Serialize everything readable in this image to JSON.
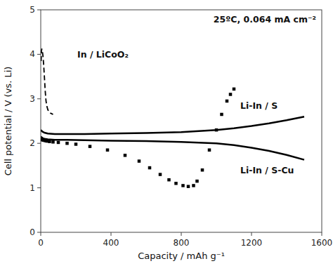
{
  "chart_data": {
    "type": "line",
    "title": "25ºC, 0.064 mA cm⁻²",
    "xlabel": "Capacity / mAh g⁻¹",
    "ylabel": "Cell potential / V (vs. Li)",
    "xlim": [
      0,
      1600
    ],
    "ylim": [
      0,
      5
    ],
    "xticks": [
      0,
      400,
      800,
      1200,
      1600
    ],
    "yticks": [
      0,
      1,
      2,
      3,
      4,
      5
    ],
    "annotations": [
      "In / LiCoO₂",
      "Li-In / S",
      "Li-In / S-Cu"
    ],
    "series": [
      {
        "color": "#000000",
        "line_style": "dashed",
        "x": [
          2,
          4,
          6,
          8,
          10,
          13,
          16,
          20,
          25,
          30,
          35,
          40,
          45,
          50,
          55,
          60,
          65,
          70
        ],
        "values": [
          3.85,
          4.08,
          4.12,
          4.1,
          4.05,
          3.95,
          3.8,
          3.55,
          3.2,
          2.95,
          2.83,
          2.76,
          2.72,
          2.7,
          2.68,
          2.67,
          2.66,
          2.65
        ]
      },
      {
        "color": "#000000",
        "line_style": "solid",
        "x": [
          0,
          10,
          20,
          40,
          80,
          150,
          250,
          400,
          600,
          800,
          1000,
          1100,
          1200,
          1300,
          1400,
          1500
        ],
        "values": [
          2.3,
          2.26,
          2.24,
          2.22,
          2.21,
          2.21,
          2.21,
          2.22,
          2.23,
          2.25,
          2.3,
          2.34,
          2.39,
          2.45,
          2.52,
          2.6
        ]
      },
      {
        "color": "#000000",
        "line_style": "solid",
        "x": [
          0,
          10,
          20,
          40,
          80,
          150,
          250,
          400,
          600,
          800,
          1000,
          1100,
          1200,
          1300,
          1400,
          1500
        ],
        "values": [
          2.15,
          2.12,
          2.1,
          2.09,
          2.08,
          2.08,
          2.07,
          2.06,
          2.05,
          2.03,
          2.0,
          1.96,
          1.9,
          1.83,
          1.74,
          1.63
        ]
      },
      {
        "color": "#000000",
        "line_style": "none",
        "marker": "square",
        "x": [
          5,
          15,
          25,
          35,
          50,
          70,
          100,
          150,
          200,
          280,
          380,
          480,
          560,
          620,
          680,
          730,
          770,
          810,
          840,
          870,
          890,
          920,
          960,
          1000,
          1030,
          1060,
          1080,
          1100
        ],
        "values": [
          2.08,
          2.07,
          2.06,
          2.05,
          2.04,
          2.03,
          2.02,
          2.0,
          1.98,
          1.93,
          1.85,
          1.73,
          1.6,
          1.45,
          1.3,
          1.18,
          1.1,
          1.05,
          1.03,
          1.05,
          1.15,
          1.4,
          1.85,
          2.3,
          2.65,
          2.95,
          3.1,
          3.22
        ]
      }
    ]
  }
}
